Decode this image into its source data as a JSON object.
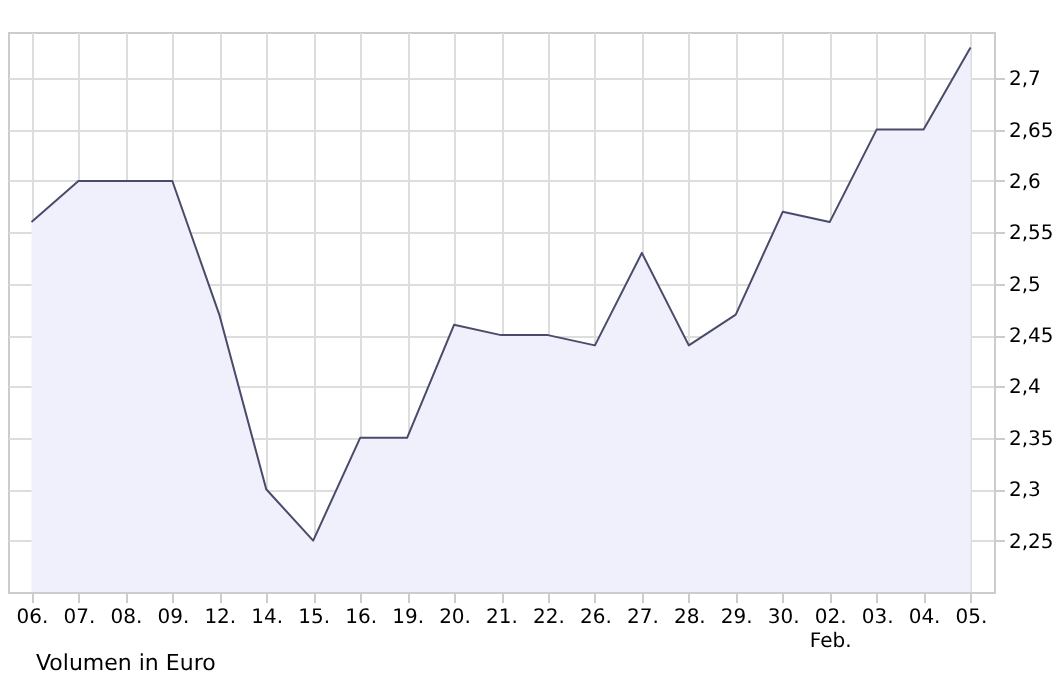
{
  "chart_data": {
    "type": "area",
    "categories": [
      "06.",
      "07.",
      "08.",
      "09.",
      "12.",
      "14.",
      "15.",
      "16.",
      "19.",
      "20.",
      "21.",
      "22.",
      "26.",
      "27.",
      "28.",
      "29.",
      "30.",
      "02. Feb.",
      "03.",
      "04.",
      "05."
    ],
    "series": [
      {
        "color": "#4a4a6a",
        "values": [
          2.56,
          2.6,
          2.6,
          2.6,
          2.47,
          2.3,
          2.25,
          2.35,
          2.35,
          2.46,
          2.45,
          2.45,
          2.44,
          2.53,
          2.44,
          2.47,
          2.57,
          2.56,
          2.65,
          2.65,
          2.73
        ]
      }
    ],
    "ylim": [
      2.2,
      2.745
    ],
    "yticks": [
      {
        "value": 2.25,
        "label": "2,25"
      },
      {
        "value": 2.3,
        "label": "2,3"
      },
      {
        "value": 2.35,
        "label": "2,35"
      },
      {
        "value": 2.4,
        "label": "2,4"
      },
      {
        "value": 2.45,
        "label": "2,45"
      },
      {
        "value": 2.5,
        "label": "2,5"
      },
      {
        "value": 2.55,
        "label": "2,55"
      },
      {
        "value": 2.6,
        "label": "2,6"
      },
      {
        "value": 2.65,
        "label": "2,65"
      },
      {
        "value": 2.7,
        "label": "2,7"
      }
    ],
    "grid": true,
    "annotations": [
      "Volumen in Euro"
    ]
  }
}
